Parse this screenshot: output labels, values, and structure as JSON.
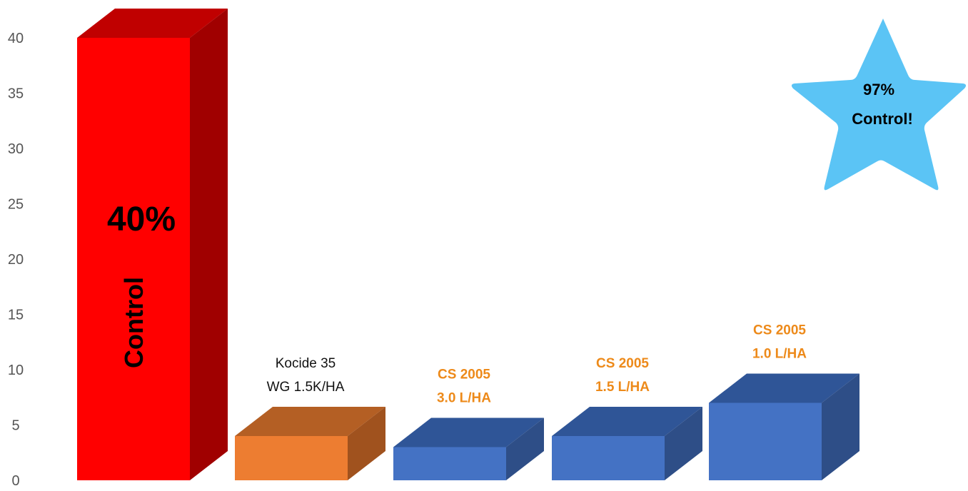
{
  "chart_data": {
    "type": "bar",
    "style": "3d",
    "categories": [
      "Control",
      "Kocide 35 WG 1.5K/HA",
      "CS 2005 3.0 L/HA",
      "CS 2005 1.5 L/HA",
      "CS 2005 1.0 L/HA"
    ],
    "values": [
      40,
      4,
      3,
      4,
      7
    ],
    "ylim": [
      0,
      40
    ],
    "yticks": [
      0,
      5,
      10,
      15,
      20,
      25,
      30,
      35,
      40
    ],
    "title": "",
    "xlabel": "",
    "ylabel": "",
    "grid": false,
    "bars": [
      {
        "label_lines": [],
        "color": "#FF0000",
        "top_color": "#C00000",
        "side_color": "#A00000"
      },
      {
        "label_lines": [
          "Kocide 35",
          "WG 1.5K/HA"
        ],
        "label_color": "#111111",
        "label_bold": false,
        "color": "#ED7D31",
        "top_color": "#B45F24",
        "side_color": "#A0521E"
      },
      {
        "label_lines": [
          "CS 2005",
          "3.0 L/HA"
        ],
        "label_color": "#ED8A1A",
        "label_bold": true,
        "color": "#4472C4",
        "top_color": "#2F5597",
        "side_color": "#2E4E87"
      },
      {
        "label_lines": [
          "CS 2005",
          "1.5 L/HA"
        ],
        "label_color": "#ED8A1A",
        "label_bold": true,
        "color": "#4472C4",
        "top_color": "#2F5597",
        "side_color": "#2E4E87"
      },
      {
        "label_lines": [
          "CS 2005",
          "1.0 L/HA"
        ],
        "label_color": "#ED8A1A",
        "label_bold": true,
        "color": "#4472C4",
        "top_color": "#2F5597",
        "side_color": "#2E4E87"
      }
    ],
    "annotations": {
      "control_percent": "40%",
      "control_word": "Control",
      "star_line1": "97%",
      "star_line2": "Control!",
      "star_color": "#5BC4F5"
    }
  }
}
